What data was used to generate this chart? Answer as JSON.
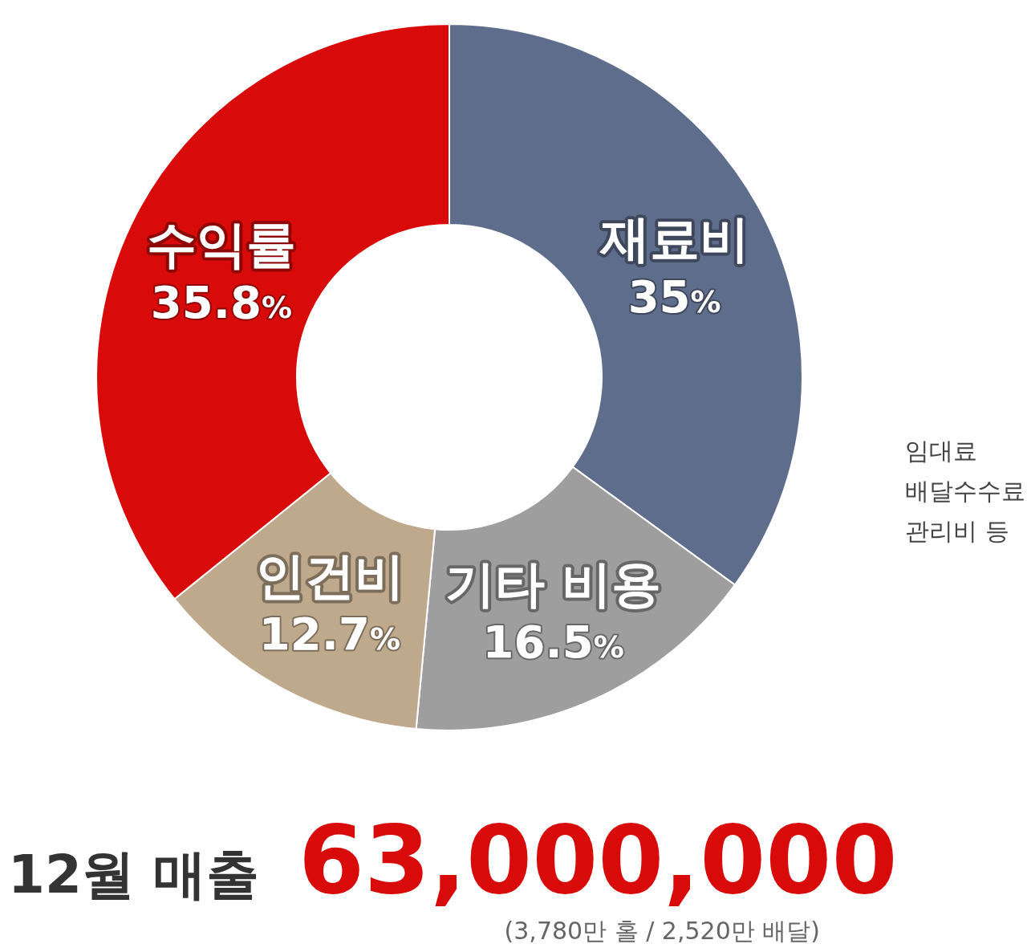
{
  "chart_data": {
    "type": "donut",
    "title": "12월 매출",
    "subtitle": "63,000,000",
    "categories": [
      "재료비",
      "기타 비용",
      "인건비",
      "수익률"
    ],
    "values": [
      35,
      16.5,
      12.7,
      35.8
    ],
    "colors": [
      "#5f6d8c",
      "#9e9e9e",
      "#bfa98c",
      "#d90a0a"
    ],
    "value_labels": [
      "35%",
      "16.5%",
      "12.7%",
      "35.8%"
    ],
    "annotations": [
      "(3,780만 홀 / 2,520만 배달)",
      "임대료\n배달수수료\n관리비 등"
    ],
    "legend": false
  }
}
